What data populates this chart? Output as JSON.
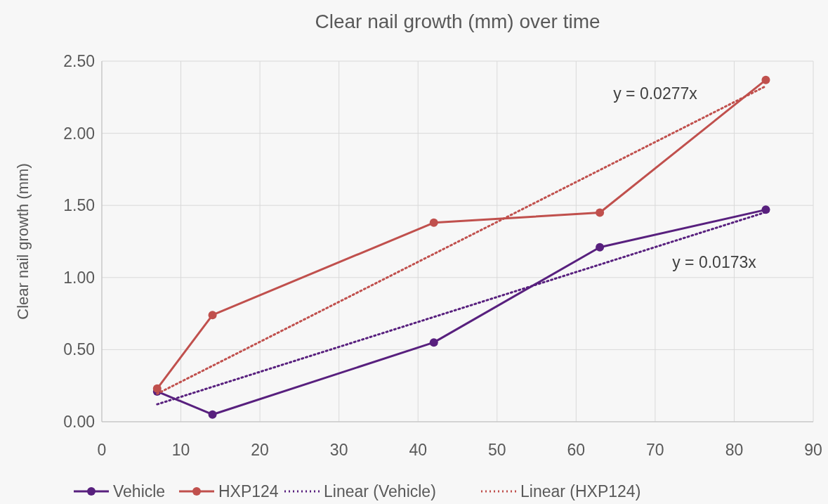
{
  "chart_data": {
    "type": "line",
    "title": "Clear nail growth (mm) over time",
    "ylabel": "Clear nail growth (mm)",
    "xlim": [
      0,
      90
    ],
    "xticks": [
      0,
      10,
      20,
      30,
      40,
      50,
      60,
      70,
      80,
      90
    ],
    "ylim": [
      0,
      2.5
    ],
    "yticks": [
      {
        "value": 0,
        "label": "0.00"
      },
      {
        "value": 0.5,
        "label": "0.50"
      },
      {
        "value": 1,
        "label": "1.00"
      },
      {
        "value": 1.5,
        "label": "1.50"
      },
      {
        "value": 2,
        "label": "2.00"
      },
      {
        "value": 2.5,
        "label": "2.50"
      }
    ],
    "grid": true,
    "legend": "bottom",
    "series": [
      {
        "name": "Vehicle",
        "color": "#58207e",
        "x": [
          7,
          14,
          42,
          63,
          84
        ],
        "values": [
          0.21,
          0.05,
          0.55,
          1.21,
          1.47
        ],
        "marker": "circle",
        "line_style": "solid"
      },
      {
        "name": "HXP124",
        "color": "#c0504d",
        "x": [
          7,
          14,
          42,
          63,
          84
        ],
        "values": [
          0.23,
          0.74,
          1.38,
          1.45,
          2.37
        ],
        "marker": "circle",
        "line_style": "solid"
      },
      {
        "name": "Linear (Vehicle)",
        "color": "#58207e",
        "x": [
          7,
          84
        ],
        "values": [
          0.121,
          1.453
        ],
        "marker": "none",
        "line_style": "dotted"
      },
      {
        "name": "Linear (HXP124)",
        "color": "#c0504d",
        "x": [
          7,
          84
        ],
        "values": [
          0.194,
          2.327
        ],
        "marker": "none",
        "line_style": "dotted"
      }
    ],
    "annotations": [
      "y = 0.0277x",
      "y = 0.0173x"
    ]
  }
}
